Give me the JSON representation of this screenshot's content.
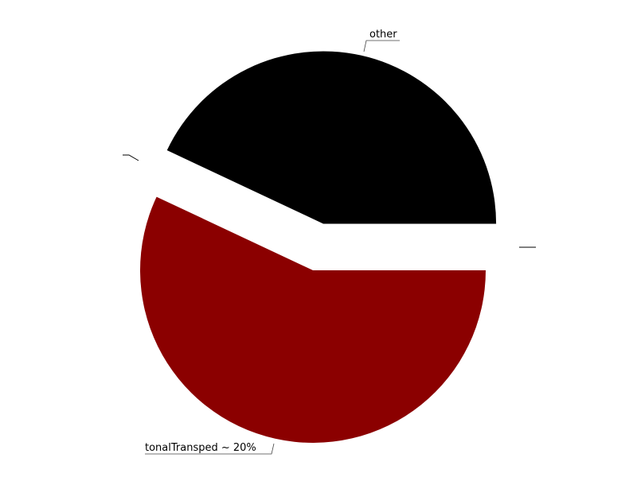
{
  "chart_data": {
    "type": "pie",
    "title": "",
    "slices": [
      {
        "label": "other",
        "value": 43,
        "color": "#000000",
        "exploded": true
      },
      {
        "label": "tonalTransped ~ 20%",
        "value": 57,
        "color": "#8b0000",
        "exploded": false
      }
    ],
    "unlabeled_leaders": 2
  }
}
